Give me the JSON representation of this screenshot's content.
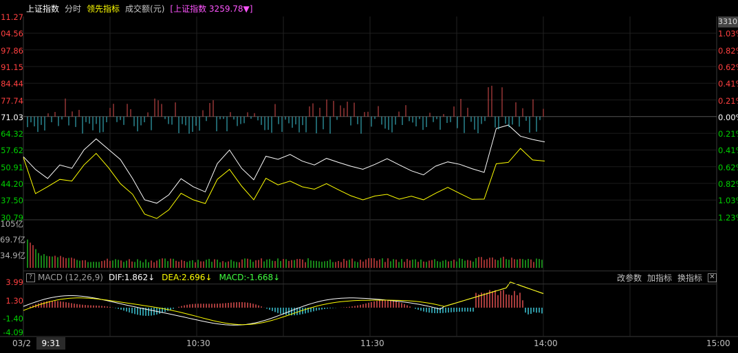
{
  "header": {
    "title": "上证指数",
    "tab_fenshi": "分时",
    "leading_indicator": "领先指标",
    "turnover": "成交额(元)",
    "index_quote": "[上证指数 3259.78▼]"
  },
  "price_axis_left": [
    "11.27",
    "04.56",
    "97.86",
    "91.15",
    "84.44",
    "77.74",
    "71.03",
    "64.32",
    "57.62",
    "50.91",
    "44.20",
    "37.50",
    "30.79"
  ],
  "price_axis_right": [
    "1.23%",
    "1.03%",
    "0.82%",
    "0.62%",
    "0.41%",
    "0.21%",
    "0.00%",
    "0.21%",
    "0.41%",
    "0.62%",
    "0.82%",
    "1.03%",
    "1.23%"
  ],
  "right_scroll_label": "3310",
  "volume_axis": [
    "105亿",
    "69.7亿",
    "34.9亿"
  ],
  "macd": {
    "help": "?",
    "label": "MACD (12,26,9)",
    "dif": "DIF:1.862↓",
    "dea": "DEA:2.696↓",
    "macd": "MACD:-1.668↓",
    "axis": [
      "3.99",
      "1.30",
      "-1.40",
      "-4.09"
    ],
    "change_params": "改参数",
    "add_indicator": "加指标",
    "switch_indicator": "换指标",
    "close": "✕"
  },
  "time_axis": {
    "date": "03/2",
    "current": "9:31",
    "labels": [
      "10:30",
      "11:30",
      "14:00",
      "15:00"
    ]
  },
  "chart_data": {
    "type": "line",
    "x_range": [
      "09:30",
      "15:00"
    ],
    "ylim": [
      3230.79,
      3311.27
    ],
    "prev_close": 3271.03,
    "series": [
      {
        "values": [
          3255,
          3250,
          3246,
          3252,
          3250,
          3258,
          3262,
          3258,
          3254,
          3246,
          3238,
          3236,
          3240,
          3246,
          3243,
          3241,
          3252,
          3258,
          3250,
          3246,
          3255,
          3254,
          3256,
          3253,
          3252,
          3254,
          3253,
          3251,
          3250,
          3252,
          3254,
          3252,
          3249,
          3248,
          3251,
          3253,
          3252,
          3250,
          3249,
          3266,
          3268,
          3263,
          3262,
          3261
        ]
      },
      {
        "values": [
          3255,
          3240,
          3243,
          3246,
          3245,
          3252,
          3256,
          3251,
          3244,
          3240,
          3232,
          3230,
          3234,
          3240,
          3238,
          3236,
          3246,
          3250,
          3243,
          3238,
          3246,
          3244,
          3245,
          3243,
          3242,
          3244,
          3242,
          3239,
          3238,
          3239,
          3240,
          3238,
          3239,
          3238,
          3240,
          3243,
          3240,
          3238,
          3238,
          3252,
          3253,
          3258,
          3254,
          3253
        ]
      }
    ]
  }
}
